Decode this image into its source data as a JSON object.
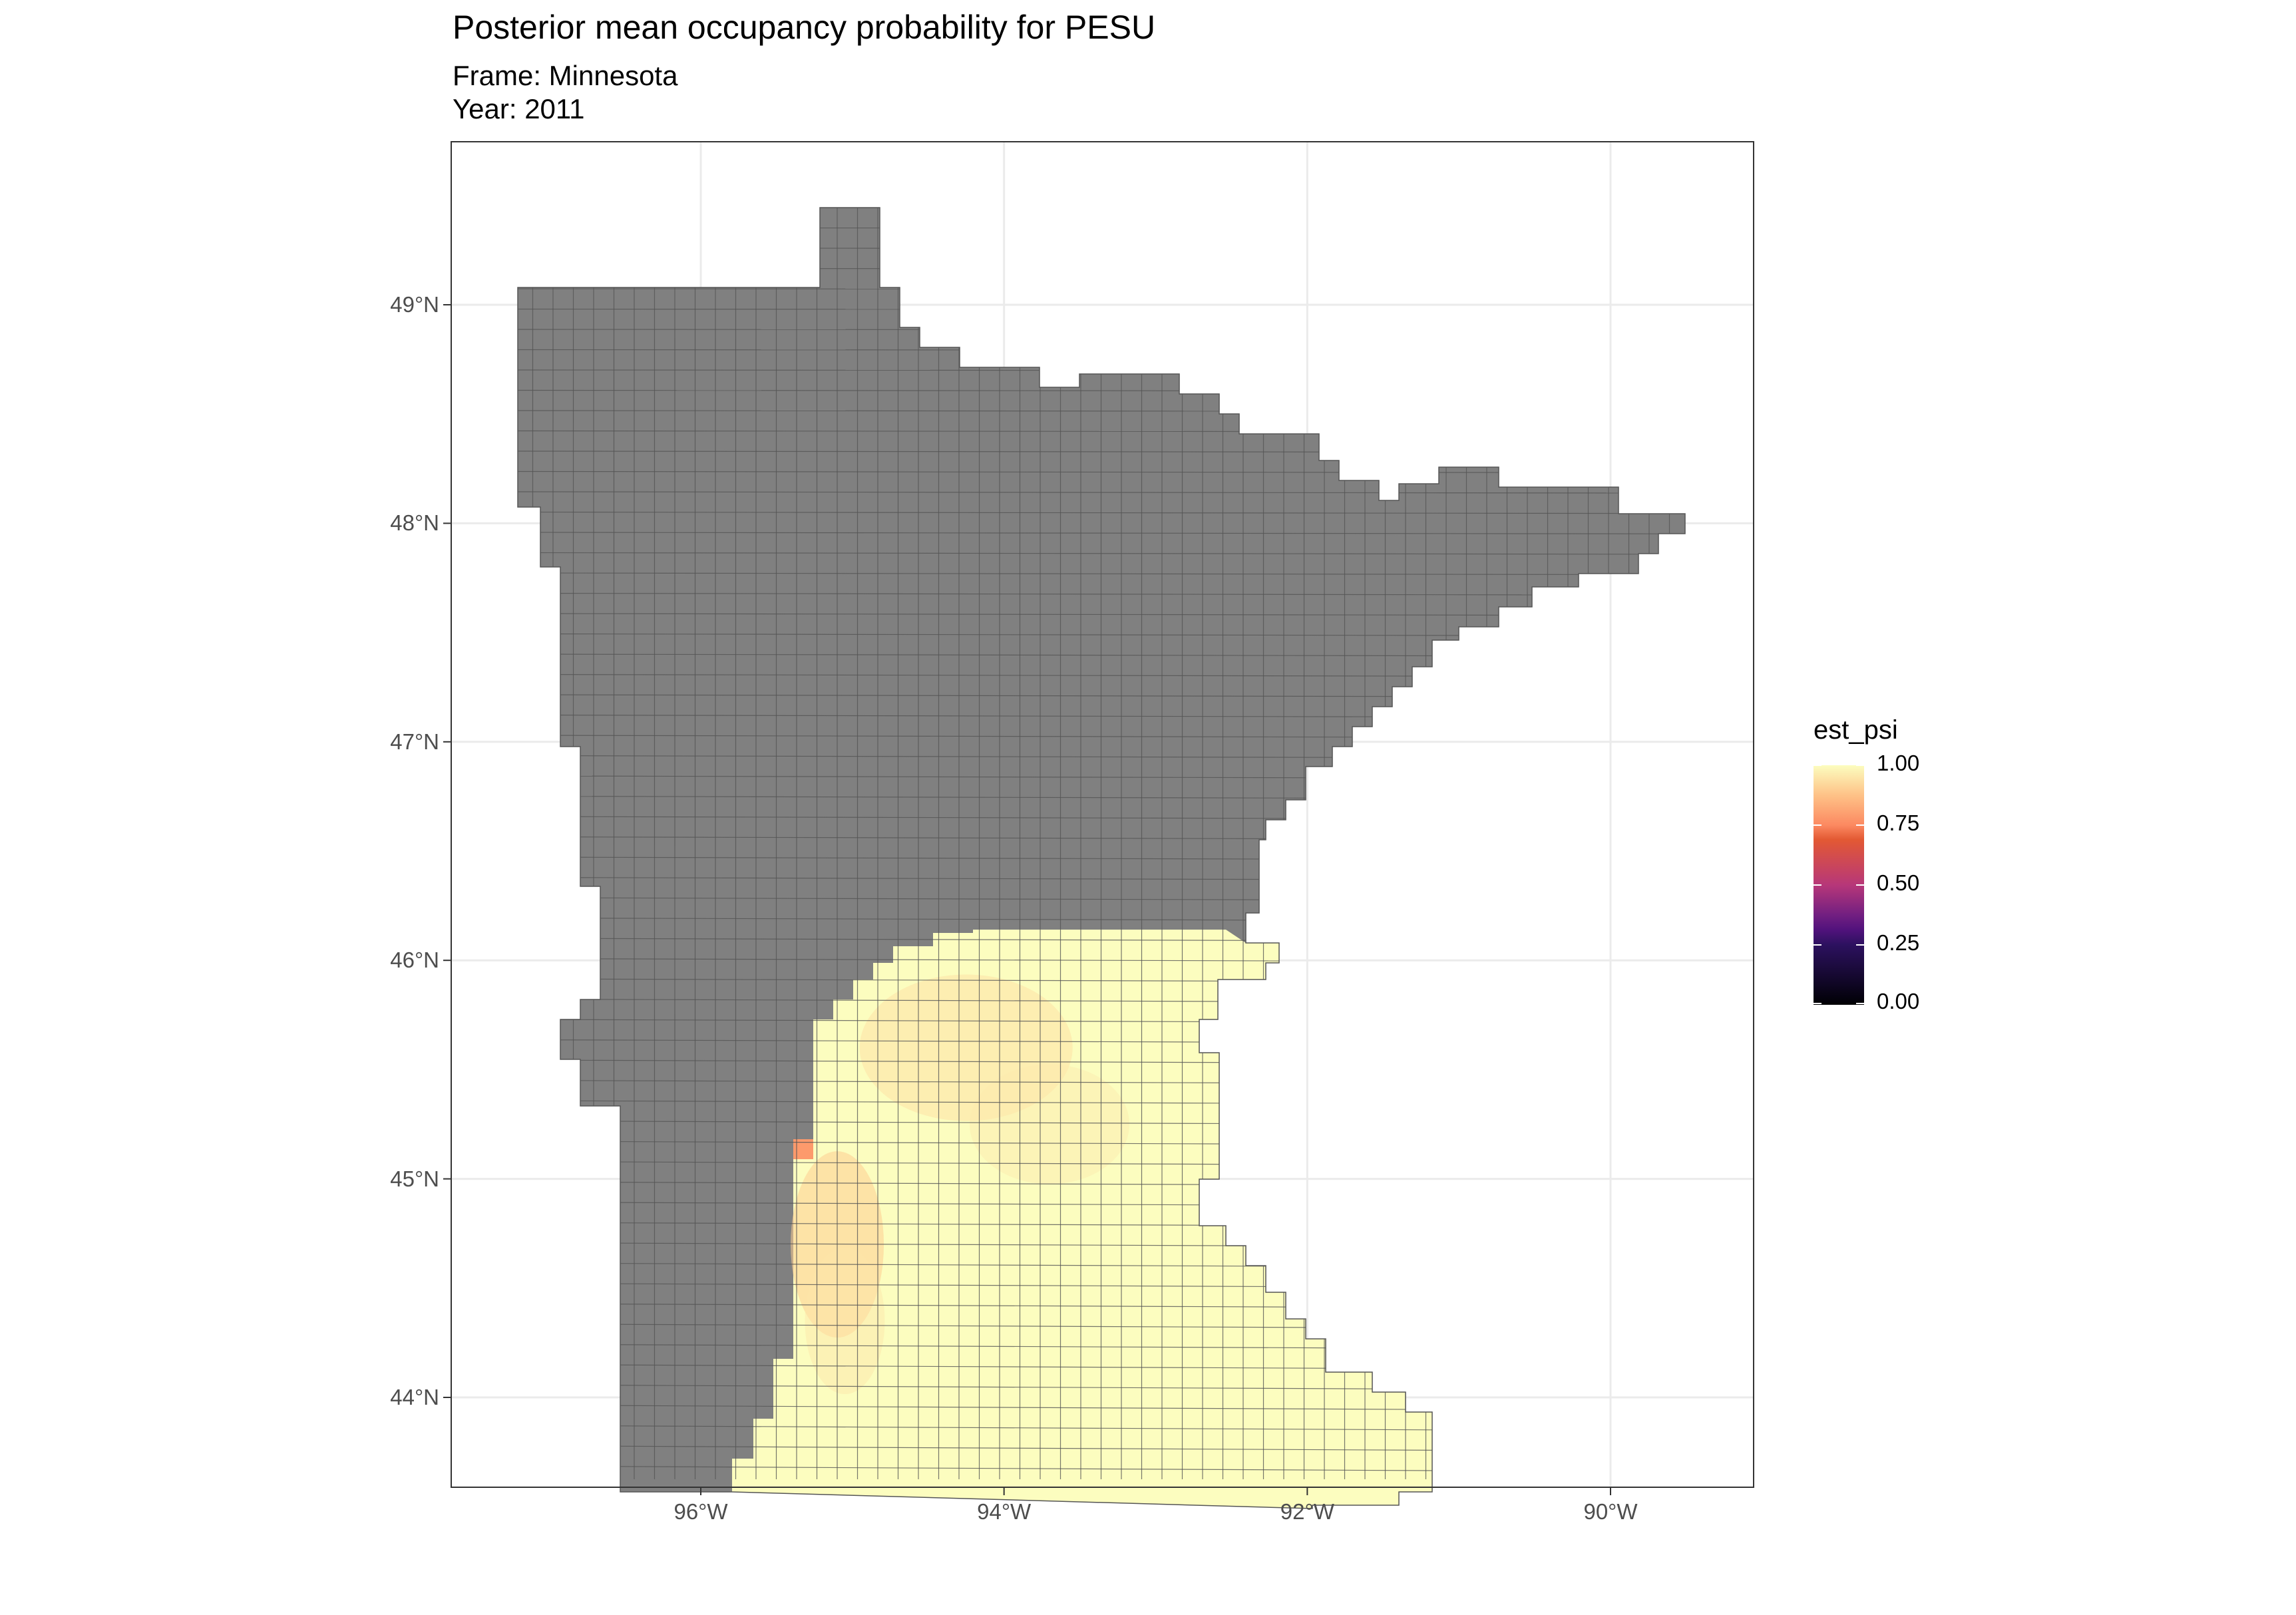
{
  "title": "Posterior mean occupancy probability for PESU",
  "subtitle": {
    "frame": "Frame: Minnesota",
    "year": "Year: 2011"
  },
  "colors": {
    "na_fill": "#808080",
    "cell_stroke": "#555555",
    "panel_border": "#333333",
    "grid": "#ebebeb",
    "high_fill": "#fcfdbf"
  },
  "axes": {
    "x_ticks": [
      "96°W",
      "94°W",
      "92°W",
      "90°W"
    ],
    "y_ticks": [
      "49°N",
      "48°N",
      "47°N",
      "46°N",
      "45°N",
      "44°N"
    ]
  },
  "legend": {
    "title": "est_psi",
    "breaks": [
      "1.00",
      "0.75",
      "0.50",
      "0.25",
      "0.00"
    ],
    "palette": "magma",
    "placement": "right"
  },
  "chart_data": {
    "type": "heatmap",
    "title": "Posterior mean occupancy probability for PESU",
    "subtitle": [
      "Frame: Minnesota",
      "Year: 2011"
    ],
    "xlabel": "",
    "ylabel": "",
    "x_ticks": [
      -96,
      -94,
      -92,
      -90
    ],
    "y_ticks": [
      49,
      48,
      47,
      46,
      45,
      44
    ],
    "value_name": "est_psi",
    "value_range": [
      0,
      1
    ],
    "color_scale": "magma",
    "na_region": "northern and western Minnesota (no estimate, grey)",
    "values_summary": {
      "southeast_region_typical": 0.97,
      "local_minimum_near": {
        "lon": -95.3,
        "lat": 45.1,
        "est_psi": 0.78
      },
      "moderate_band_near": {
        "lon": -95.1,
        "lat": 44.7,
        "est_psi": 0.88
      }
    },
    "grid": true,
    "legend_position": "right"
  }
}
